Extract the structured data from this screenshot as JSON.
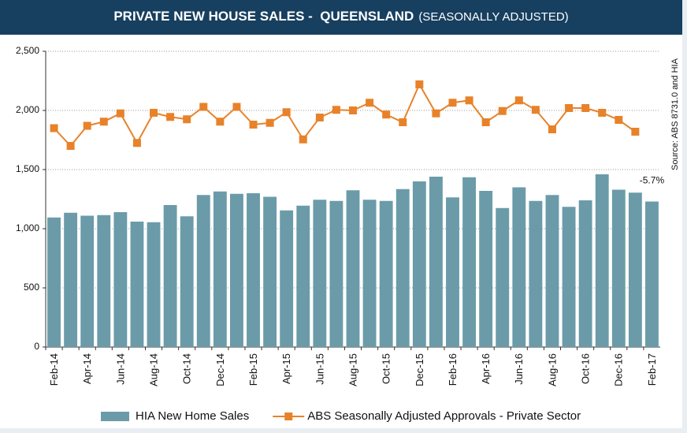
{
  "chart_data": {
    "type": "bar-line",
    "title": "PRIVATE NEW HOUSE SALES -  QUEENSLAND",
    "subtitle": "(SEASONALLY ADJUSTED)",
    "source": "Source: ABS 8731.0 and HIA",
    "annotation": "-5.7%",
    "categories": [
      "Feb-14",
      null,
      "Apr-14",
      null,
      "Jun-14",
      null,
      "Aug-14",
      null,
      "Oct-14",
      null,
      "Dec-14",
      null,
      "Feb-15",
      null,
      "Apr-15",
      null,
      "Jun-15",
      null,
      "Aug-15",
      null,
      "Oct-15",
      null,
      "Dec-15",
      null,
      "Feb-16",
      null,
      "Apr-16",
      null,
      "Jun-16",
      null,
      "Aug-16",
      null,
      "Oct-16",
      null,
      "Dec-16",
      null,
      "Feb-17"
    ],
    "series": [
      {
        "name": "HIA New Home Sales",
        "type": "bar",
        "color": "#6b9ba9",
        "values": [
          1095,
          1135,
          1110,
          1115,
          1140,
          1060,
          1055,
          1200,
          1105,
          1285,
          1315,
          1295,
          1300,
          1270,
          1155,
          1195,
          1245,
          1235,
          1325,
          1245,
          1235,
          1335,
          1400,
          1440,
          1265,
          1435,
          1320,
          1175,
          1350,
          1235,
          1285,
          1185,
          1240,
          1460,
          1330,
          1305,
          1230
        ]
      },
      {
        "name": "ABS Seasonally Adjusted Approvals - Private Sector",
        "type": "line",
        "color": "#e8822a",
        "values": [
          1850,
          1700,
          1870,
          1905,
          1975,
          1725,
          1980,
          1945,
          1925,
          2030,
          1905,
          2030,
          1880,
          1895,
          1985,
          1755,
          1940,
          2005,
          2000,
          2065,
          1965,
          1900,
          2220,
          1975,
          2065,
          2085,
          1900,
          1995,
          2085,
          2005,
          1840,
          2020,
          2020,
          1980,
          1920,
          1820,
          null
        ]
      }
    ],
    "ylim": [
      0,
      2500
    ],
    "yticks": [
      0,
      500,
      {
        "value": 1000,
        "label": "1,000"
      },
      {
        "value": 1500,
        "label": "1,500"
      },
      {
        "value": 2000,
        "label": "2,000"
      },
      {
        "value": 2500,
        "label": "2,500"
      }
    ],
    "grid": true,
    "legend": "bottom"
  }
}
